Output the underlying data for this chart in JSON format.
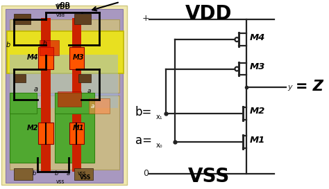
{
  "bg_color": "#ffffff",
  "title_vdd": "VDD",
  "title_vss": "VSS",
  "z_label": "= Z",
  "b_label": "b=",
  "a_label": "a=",
  "x1_label": "x₁",
  "x0_label": "x₀",
  "m1_label": "M1",
  "m2_label": "M2",
  "m3_label": "M3",
  "m4_label": "M4",
  "lc": "#222222",
  "lw": 1.6
}
